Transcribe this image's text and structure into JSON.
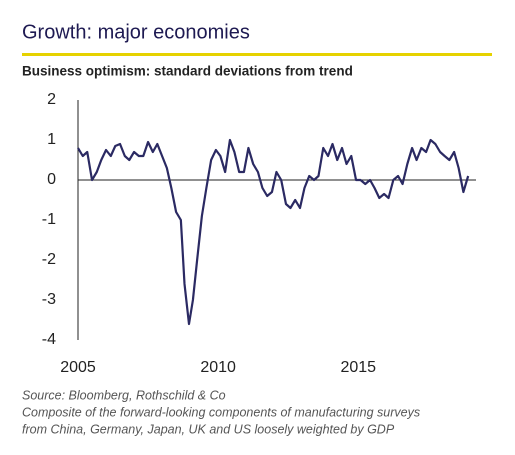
{
  "chart_data": {
    "type": "line",
    "title": "Growth: major economies",
    "subtitle": "Business optimism: standard deviations from trend",
    "source": "Source: Bloomberg, Rothschild & Co",
    "note": [
      "Composite of the forward-looking components of manufacturing surveys",
      "from China, Germany, Japan, UK and US loosely weighted by GDP"
    ],
    "x": [
      2005.0,
      2005.17,
      2005.33,
      2005.5,
      2005.67,
      2005.83,
      2006.0,
      2006.17,
      2006.33,
      2006.5,
      2006.67,
      2006.83,
      2007.0,
      2007.17,
      2007.33,
      2007.5,
      2007.67,
      2007.83,
      2008.0,
      2008.17,
      2008.33,
      2008.5,
      2008.67,
      2008.8,
      2008.96,
      2009.1,
      2009.25,
      2009.42,
      2009.58,
      2009.75,
      2009.92,
      2010.08,
      2010.25,
      2010.42,
      2010.58,
      2010.75,
      2010.92,
      2011.08,
      2011.25,
      2011.42,
      2011.58,
      2011.75,
      2011.92,
      2012.08,
      2012.25,
      2012.42,
      2012.58,
      2012.75,
      2012.92,
      2013.08,
      2013.25,
      2013.42,
      2013.58,
      2013.75,
      2013.92,
      2014.08,
      2014.25,
      2014.42,
      2014.58,
      2014.75,
      2014.92,
      2015.08,
      2015.25,
      2015.42,
      2015.58,
      2015.75,
      2015.92,
      2016.08,
      2016.25,
      2016.42,
      2016.58,
      2016.75,
      2016.92,
      2017.08,
      2017.25,
      2017.42,
      2017.58,
      2017.75,
      2017.92,
      2018.08,
      2018.25,
      2018.42,
      2018.58,
      2018.75,
      2018.92
    ],
    "series": [
      {
        "name": "Business optimism",
        "color": "#2b2a63",
        "values": [
          0.8,
          0.6,
          0.7,
          0.0,
          0.2,
          0.5,
          0.75,
          0.6,
          0.85,
          0.9,
          0.6,
          0.5,
          0.7,
          0.6,
          0.6,
          0.95,
          0.7,
          0.9,
          0.6,
          0.3,
          -0.2,
          -0.8,
          -1.0,
          -2.6,
          -3.6,
          -3.0,
          -2.0,
          -0.9,
          -0.2,
          0.5,
          0.75,
          0.6,
          0.2,
          1.0,
          0.7,
          0.2,
          0.2,
          0.8,
          0.4,
          0.2,
          -0.2,
          -0.4,
          -0.3,
          0.2,
          0.0,
          -0.6,
          -0.7,
          -0.5,
          -0.7,
          -0.2,
          0.1,
          0.0,
          0.1,
          0.8,
          0.6,
          0.9,
          0.5,
          0.8,
          0.4,
          0.6,
          0.0,
          0.0,
          -0.1,
          0.0,
          -0.2,
          -0.45,
          -0.35,
          -0.45,
          0.0,
          0.1,
          -0.1,
          0.4,
          0.8,
          0.5,
          0.8,
          0.7,
          1.0,
          0.9,
          0.7,
          0.6,
          0.5,
          0.7,
          0.3,
          -0.3,
          0.1
        ]
      }
    ],
    "xlim": [
      2005,
      2019.2
    ],
    "xticks": [
      2005,
      2010,
      2015
    ],
    "ylim": [
      -4,
      2
    ],
    "yticks": [
      -4,
      -3,
      -2,
      -1,
      0,
      1,
      2
    ],
    "zero_line": true
  }
}
